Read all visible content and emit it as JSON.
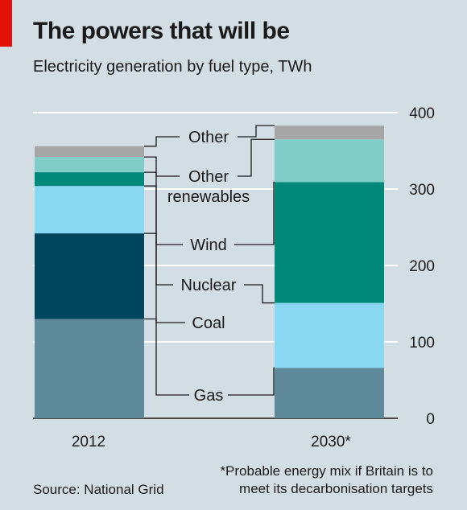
{
  "header": {
    "title": "The powers that will be",
    "subtitle": "Electricity generation by fuel type, TWh"
  },
  "footer": {
    "source": "Source: National Grid",
    "footnote_line1": "*Probable energy mix if Britain is to",
    "footnote_line2": "meet its decarbonisation targets"
  },
  "colors": {
    "brand_red": "#e3120b",
    "background": "#d3dde4",
    "Gas": "#5f8a9b",
    "Coal": "#00475e",
    "Nuclear": "#89d7f1",
    "Wind": "#00897a",
    "Other renewables": "#80ccc7",
    "Other": "#a6a6a6"
  },
  "chart_data": {
    "type": "bar",
    "stacked": true,
    "title": "The powers that will be",
    "subtitle": "Electricity generation by fuel type, TWh",
    "categories": [
      "2012",
      "2030*"
    ],
    "series": [
      {
        "name": "Gas",
        "values": [
          130,
          66
        ]
      },
      {
        "name": "Coal",
        "values": [
          112,
          0
        ]
      },
      {
        "name": "Nuclear",
        "values": [
          62,
          85
        ]
      },
      {
        "name": "Wind",
        "values": [
          18,
          158
        ]
      },
      {
        "name": "Other renewables",
        "values": [
          20,
          56
        ]
      },
      {
        "name": "Other",
        "values": [
          14,
          18
        ]
      }
    ],
    "ylim": [
      0,
      400
    ],
    "yticks": [
      "0",
      "100",
      "200",
      "300",
      "400"
    ],
    "y_axis_position": "right",
    "grid": true,
    "legend": "labels between bars",
    "label_lines": [
      "Other",
      "Other",
      "renewables",
      "Wind",
      "Nuclear",
      "Coal",
      "Gas"
    ]
  }
}
